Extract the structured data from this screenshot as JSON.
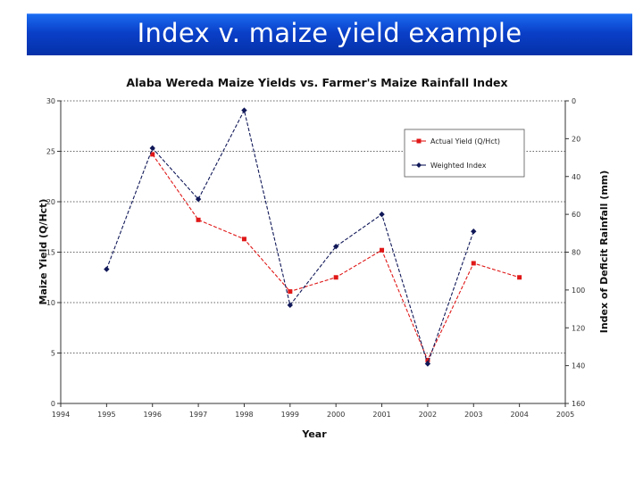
{
  "slide": {
    "title": "Index v. maize yield example"
  },
  "chart_data": {
    "type": "line",
    "title": "Alaba Wereda Maize Yields vs. Farmer's Maize Rainfall Index",
    "xlabel": "Year",
    "ylabel": "Maize Yield (Q/Hct)",
    "y2label": "Index of Deficit Rainfall (mm)",
    "xlim": [
      1994,
      2005
    ],
    "ylim": [
      0,
      30
    ],
    "y2lim": [
      0,
      160
    ],
    "y2_inverted": true,
    "x_ticks": [
      "1994",
      "1995",
      "1996",
      "1997",
      "1998",
      "1999",
      "2000",
      "2001",
      "2002",
      "2003",
      "2004",
      "2005"
    ],
    "y_ticks": [
      "0",
      "5",
      "10",
      "15",
      "20",
      "25",
      "30"
    ],
    "y2_ticks": [
      "0",
      "20",
      "40",
      "60",
      "80",
      "100",
      "120",
      "140",
      "160"
    ],
    "grid": "horizontal dotted",
    "legend_position": "top-right",
    "series": [
      {
        "name": "Actual Yield (Q/Hct)",
        "axis": "left",
        "color": "#e01818",
        "marker": "square",
        "x": [
          1996,
          1997,
          1998,
          1999,
          2000,
          2001,
          2002,
          2003,
          2004
        ],
        "values": [
          24.7,
          18.2,
          16.3,
          11.1,
          12.5,
          15.2,
          4.3,
          13.9,
          12.5
        ]
      },
      {
        "name": "Weighted Index",
        "axis": "right",
        "color": "#101858",
        "marker": "diamond",
        "x": [
          1995,
          1996,
          1997,
          1998,
          1999,
          2000,
          2001,
          2002,
          2003
        ],
        "values": [
          89,
          25,
          52,
          5,
          108,
          77,
          60,
          139,
          69
        ]
      }
    ]
  }
}
